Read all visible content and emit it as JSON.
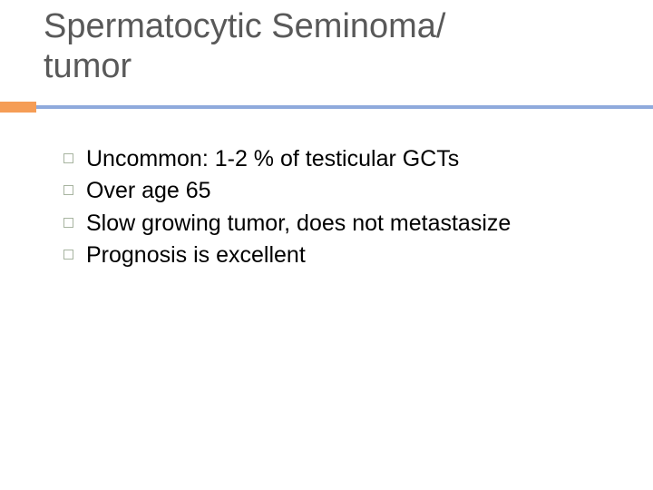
{
  "slide": {
    "title_line1": "Spermatocytic Seminoma/",
    "title_line2": "tumor",
    "title_color": "#595959",
    "title_fontsize": 38,
    "background_color": "#ffffff"
  },
  "divider": {
    "accent_bar_color": "#f59d56",
    "accent_bar_width": 40,
    "accent_bar_height": 12,
    "line_color": "#8faadc",
    "line_height": 4
  },
  "bullets": {
    "marker_border_color": "#a7b4a0",
    "marker_size": 11,
    "text_color": "#000000",
    "text_fontsize": 25,
    "items": [
      {
        "text": "Uncommon: 1-2 % of testicular GCTs"
      },
      {
        "text": "Over age 65"
      },
      {
        "text": "Slow growing tumor, does not metastasize"
      },
      {
        "text": "Prognosis is excellent"
      }
    ]
  }
}
